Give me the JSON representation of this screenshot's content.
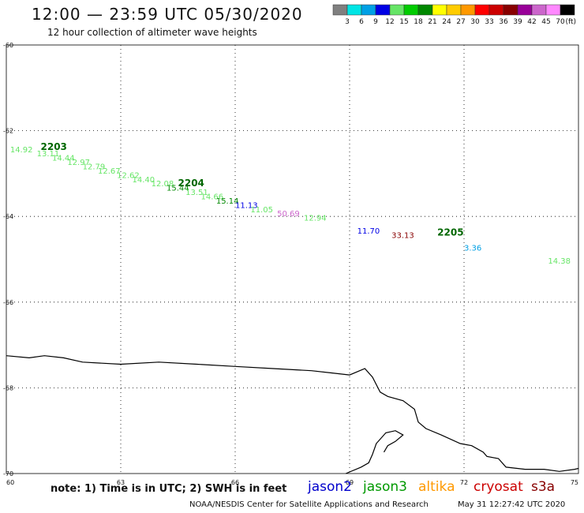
{
  "header": {
    "title": "12:00 — 23:59 UTC 05/30/2020",
    "subtitle": "12 hour collection of altimeter wave heights"
  },
  "colorbar": {
    "colors": [
      "#808080",
      "#00e5e5",
      "#00a0e5",
      "#0000e5",
      "#66e566",
      "#00cc00",
      "#008800",
      "#ffff00",
      "#ffcc00",
      "#ff9900",
      "#ff0000",
      "#cc0000",
      "#880000",
      "#990099",
      "#cc66cc",
      "#ff88ff",
      "#000000"
    ],
    "labels": [
      "3",
      "6",
      "9",
      "12",
      "15",
      "18",
      "21",
      "24",
      "27",
      "30",
      "33",
      "36",
      "39",
      "42",
      "45",
      "70"
    ],
    "unit": "(ft)"
  },
  "axes": {
    "y_labels": [
      "-60",
      "-62",
      "-64",
      "-66",
      "-68",
      "-70"
    ],
    "x_labels": [
      "60",
      "63",
      "66",
      "69",
      "72",
      "75"
    ]
  },
  "chart_data": {
    "type": "scatter",
    "x": [
      60.1,
      60.8,
      61.2,
      61.6,
      62.0,
      62.4,
      62.9,
      63.3,
      63.8,
      64.2,
      64.7,
      65.1,
      65.5,
      66.0,
      66.4,
      67.1,
      67.8,
      69.2,
      70.1,
      72.0,
      74.2
    ],
    "y": [
      -62.5,
      -62.6,
      -62.7,
      -62.8,
      -62.9,
      -63.0,
      -63.1,
      -63.2,
      -63.3,
      -63.4,
      -63.5,
      -63.6,
      -63.7,
      -63.8,
      -63.9,
      -64.0,
      -64.1,
      -64.4,
      -64.5,
      -64.8,
      -65.1
    ],
    "values": [
      "14.92",
      "13.11",
      "14.44",
      "12.97",
      "12.79",
      "12.67",
      "12.62",
      "14.40",
      "12.08",
      "15.44",
      "13.51",
      "14.66",
      "15.14",
      "11.13",
      "11.05",
      "50.69",
      "12.94",
      "11.70",
      "33.13",
      "3.36",
      "14.38"
    ],
    "colors": [
      "#66e566",
      "#66e566",
      "#66e566",
      "#66e566",
      "#66e566",
      "#66e566",
      "#66e566",
      "#66e566",
      "#66e566",
      "#008800",
      "#66e566",
      "#66e566",
      "#008800",
      "#0000e5",
      "#66e566",
      "#cc66cc",
      "#66e566",
      "#0000e5",
      "#880000",
      "#00a0e5",
      "#66e566"
    ],
    "labels": [
      {
        "text": "2203",
        "x": 60.9,
        "y": -62.45
      },
      {
        "text": "2204",
        "x": 64.5,
        "y": -63.3
      },
      {
        "text": "2205",
        "x": 71.3,
        "y": -64.45
      }
    ],
    "coastline": [
      [
        60.0,
        -67.25
      ],
      [
        60.6,
        -67.3
      ],
      [
        61.0,
        -67.25
      ],
      [
        61.5,
        -67.3
      ],
      [
        62.0,
        -67.4
      ],
      [
        63.0,
        -67.45
      ],
      [
        64.0,
        -67.4
      ],
      [
        65.0,
        -67.45
      ],
      [
        66.0,
        -67.5
      ],
      [
        67.0,
        -67.55
      ],
      [
        68.0,
        -67.6
      ],
      [
        68.5,
        -67.65
      ],
      [
        69.0,
        -67.7
      ],
      [
        69.4,
        -67.55
      ],
      [
        69.6,
        -67.75
      ],
      [
        69.8,
        -68.1
      ],
      [
        70.0,
        -68.2
      ],
      [
        70.4,
        -68.3
      ],
      [
        70.7,
        -68.5
      ],
      [
        70.8,
        -68.8
      ],
      [
        71.0,
        -68.95
      ],
      [
        71.4,
        -69.1
      ],
      [
        71.9,
        -69.3
      ],
      [
        72.2,
        -69.35
      ],
      [
        72.5,
        -69.5
      ],
      [
        72.6,
        -69.6
      ],
      [
        72.9,
        -69.65
      ],
      [
        73.1,
        -69.85
      ],
      [
        73.6,
        -69.9
      ],
      [
        74.1,
        -69.9
      ],
      [
        74.5,
        -69.95
      ],
      [
        74.9,
        -69.9
      ],
      [
        75.0,
        -69.88
      ]
    ],
    "coastline2": [
      [
        68.9,
        -70.0
      ],
      [
        69.3,
        -69.85
      ],
      [
        69.5,
        -69.75
      ],
      [
        69.6,
        -69.55
      ],
      [
        69.7,
        -69.3
      ],
      [
        69.95,
        -69.05
      ],
      [
        70.2,
        -69.0
      ],
      [
        70.4,
        -69.1
      ],
      [
        70.2,
        -69.25
      ],
      [
        70.0,
        -69.35
      ],
      [
        69.9,
        -69.5
      ]
    ],
    "xlim": [
      60,
      75
    ],
    "ylim": [
      -70,
      -60
    ],
    "grid": true
  },
  "footer": {
    "note": "note: 1) Time is in UTC; 2) SWH is in feet",
    "satellites": [
      {
        "name": "jason2",
        "color": "#0000cc"
      },
      {
        "name": "jason3",
        "color": "#009900"
      },
      {
        "name": "altika",
        "color": "#ff9900"
      },
      {
        "name": "cryosat",
        "color": "#cc0000"
      },
      {
        "name": "s3a",
        "color": "#880000"
      }
    ],
    "credit": "NOAA/NESDIS Center for Satellite Applications and Research",
    "timestamp": "May 31 12:27:42 UTC 2020"
  }
}
